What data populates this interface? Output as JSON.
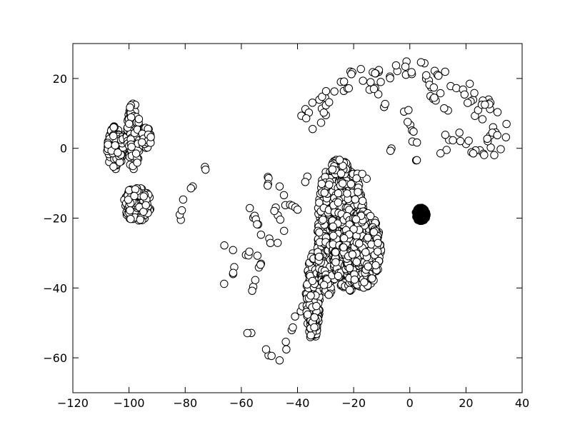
{
  "chart_data": {
    "type": "scatter",
    "title": "",
    "xlabel": "",
    "ylabel": "",
    "xlim": [
      -120,
      40
    ],
    "ylim": [
      -70,
      30
    ],
    "xticks": [
      "−120",
      "−100",
      "−80",
      "−60",
      "−40",
      "−20",
      "0",
      "20",
      "40"
    ],
    "yticks": [
      "20",
      "0",
      "−20",
      "−40",
      "−60"
    ],
    "xtick_values": [
      -120,
      -100,
      -80,
      -60,
      -40,
      -20,
      0,
      20,
      40
    ],
    "ytick_values": [
      20,
      0,
      -20,
      -40,
      -60
    ],
    "grid": false,
    "marker": "circle",
    "colors": {
      "marker_fill": "#ffffff",
      "marker_edge": "#000000",
      "dense_cluster": "#000000"
    },
    "series": [
      {
        "clusters": [
          {
            "type": "blob",
            "x": [
              -108,
              -102
            ],
            "y": [
              -6,
              7
            ]
          },
          {
            "type": "blob",
            "x": [
              -101,
              -96
            ],
            "y": [
              -6,
              13
            ]
          },
          {
            "type": "blob",
            "x": [
              -96,
              -92
            ],
            "y": [
              0,
              6
            ]
          },
          {
            "type": "blob",
            "x": [
              -102,
              -92
            ],
            "y": [
              -21,
              -11
            ]
          },
          {
            "type": "polyline",
            "pts": [
              [
                -82,
                -20
              ],
              [
                -79,
                -12
              ],
              [
                -76,
                -8
              ],
              [
                -72,
                -5
              ]
            ]
          },
          {
            "type": "polyline",
            "pts": [
              [
                -66,
                -27
              ],
              [
                -62,
                -30
              ],
              [
                -57,
                -30
              ],
              [
                -52,
                -31
              ]
            ]
          },
          {
            "type": "polyline",
            "pts": [
              [
                -59,
                -14
              ],
              [
                -55,
                -20
              ],
              [
                -52,
                -25
              ],
              [
                -47,
                -28
              ]
            ]
          },
          {
            "type": "polyline",
            "pts": [
              [
                -51,
                -8
              ],
              [
                -49,
                -15
              ],
              [
                -47,
                -20
              ],
              [
                -44,
                -24
              ]
            ]
          },
          {
            "type": "polyline",
            "pts": [
              [
                -46,
                -10
              ],
              [
                -44,
                -16
              ],
              [
                -41,
                -17
              ],
              [
                -39,
                -16
              ]
            ]
          },
          {
            "type": "polyline",
            "pts": [
              [
                -66,
                -39
              ],
              [
                -63,
                -35
              ],
              [
                -61,
                -33
              ]
            ]
          },
          {
            "type": "polyline",
            "pts": [
              [
                -57,
                -44
              ],
              [
                -55,
                -38
              ],
              [
                -53,
                -33
              ]
            ]
          },
          {
            "type": "polyline",
            "pts": [
              [
                -58,
                -52
              ],
              [
                -57,
                -53
              ]
            ]
          },
          {
            "type": "polyline",
            "pts": [
              [
                -53,
                -58
              ],
              [
                -50,
                -59
              ],
              [
                -46,
                -60
              ]
            ]
          },
          {
            "type": "polyline",
            "pts": [
              [
                -45,
                -58
              ],
              [
                -43,
                -54
              ],
              [
                -41,
                -50
              ],
              [
                -39,
                -46
              ],
              [
                -37,
                -42
              ]
            ]
          },
          {
            "type": "blob",
            "x": [
              -37,
              -32
            ],
            "y": [
              -55,
              -30
            ]
          },
          {
            "type": "blob",
            "x": [
              -33,
              -25
            ],
            "y": [
              -42,
              -6
            ]
          },
          {
            "type": "blob",
            "x": [
              -28,
              -16
            ],
            "y": [
              -41,
              -6
            ]
          },
          {
            "type": "blob",
            "x": [
              -24,
              -10
            ],
            "y": [
              -40,
              -18
            ]
          },
          {
            "type": "blob",
            "x": [
              -28,
              -22
            ],
            "y": [
              -8,
              -3
            ]
          },
          {
            "type": "polyline",
            "pts": [
              [
                -38,
                -10
              ],
              [
                -36,
                -8
              ]
            ]
          },
          {
            "type": "polyline",
            "pts": [
              [
                -24,
                -7
              ],
              [
                -18,
                -8
              ],
              [
                -14,
                -8
              ]
            ]
          },
          {
            "type": "arc",
            "pts": [
              [
                -38,
                6
              ],
              [
                -34,
                10
              ],
              [
                -29,
                14
              ],
              [
                -25,
                17
              ],
              [
                -20,
                19
              ],
              [
                -14,
                20
              ],
              [
                -8,
                21
              ],
              [
                -2,
                22
              ],
              [
                4,
                22
              ],
              [
                10,
                20
              ],
              [
                16,
                18
              ],
              [
                21,
                16
              ],
              [
                25,
                13
              ],
              [
                28,
                10
              ],
              [
                31,
                7
              ],
              [
                32,
                4
              ],
              [
                30,
                1
              ],
              [
                25,
                0
              ],
              [
                19,
                1
              ],
              [
                14,
                2
              ],
              [
                12,
                1
              ]
            ],
            "thickness": 4
          },
          {
            "type": "polyline",
            "pts": [
              [
                -14,
                17
              ],
              [
                -10,
                14
              ],
              [
                -8,
                12
              ]
            ]
          },
          {
            "type": "polyline",
            "pts": [
              [
                -4,
                14
              ],
              [
                -1,
                10
              ],
              [
                0,
                6
              ],
              [
                1,
                3
              ],
              [
                3,
                1
              ]
            ]
          },
          {
            "type": "polyline",
            "pts": [
              [
                2,
                -3
              ],
              [
                3,
                -4
              ]
            ]
          },
          {
            "type": "polyline",
            "pts": [
              [
                -7,
                0
              ],
              [
                -6,
                0
              ]
            ]
          },
          {
            "type": "polyline",
            "pts": [
              [
                7,
                16
              ],
              [
                9,
                14
              ],
              [
                12,
                12
              ],
              [
                14,
                11
              ]
            ]
          }
        ]
      },
      {
        "dense": true,
        "clusters": [
          {
            "type": "blob",
            "x": [
              2,
              6
            ],
            "y": [
              -21,
              -17
            ]
          }
        ]
      }
    ]
  }
}
